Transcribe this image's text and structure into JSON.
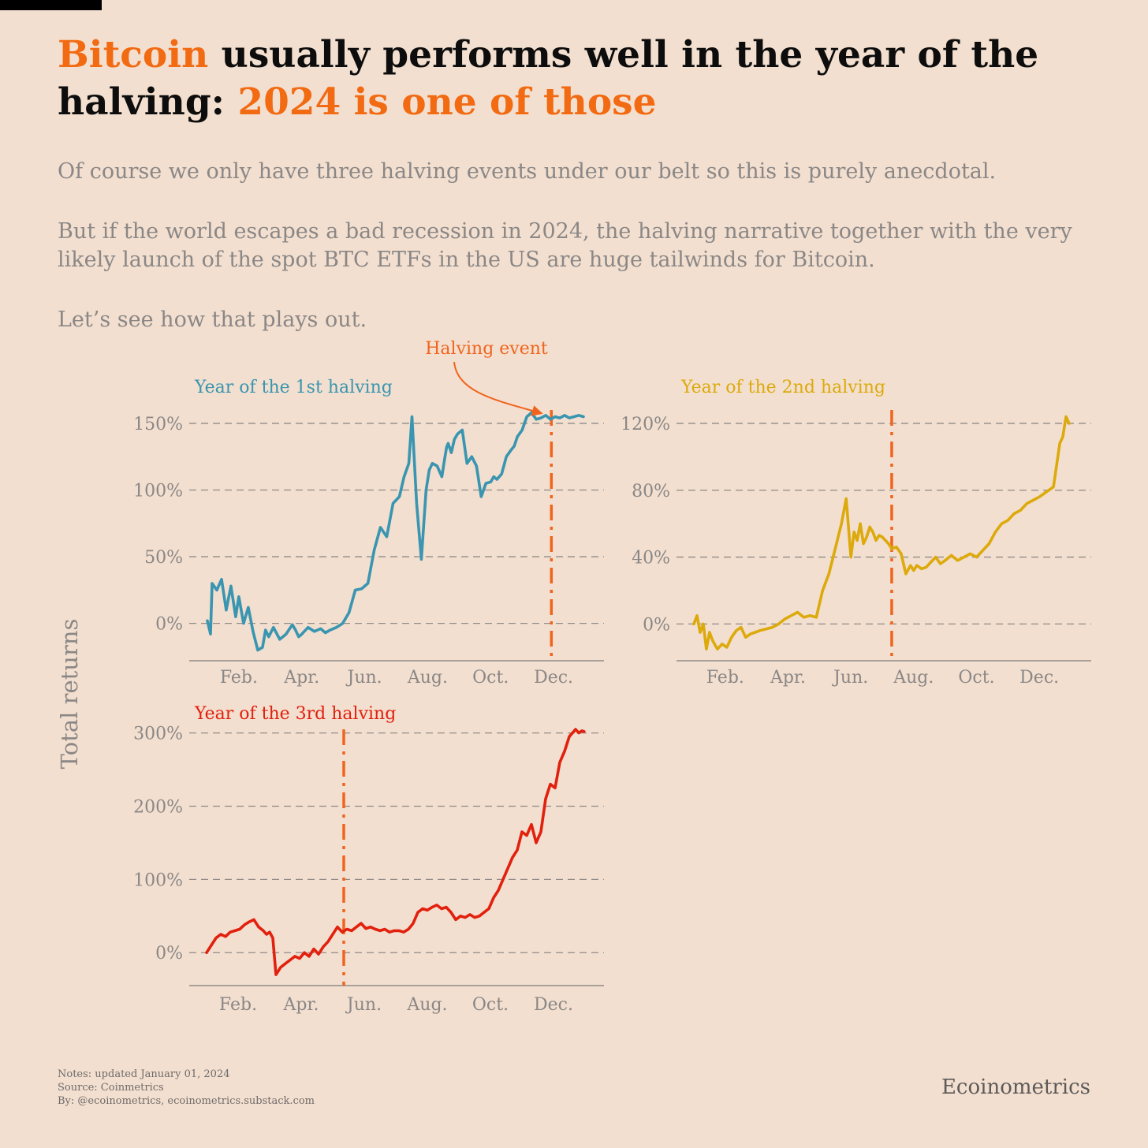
{
  "title": {
    "part1": "Bitcoin",
    "part2": " usually performs well in the year of the halving: ",
    "part3": "2024 is one of those"
  },
  "subtitle": {
    "p1": "Of course we only have three halving events under our belt so this is purely anecdotal.",
    "p2": "But if the world escapes a bad recession in 2024, the halving narrative together with the very likely launch of the spot BTC ETFs in the US are huge tailwinds for Bitcoin.",
    "p3": "Let’s see how that plays out."
  },
  "annotation": "Halving event",
  "notes": {
    "line1": "Notes: updated January 01, 2024",
    "line2": "Source: Coinmetrics",
    "line3": "By: @ecoinometrics, ecoinometrics.substack.com"
  },
  "brand": "Ecoinometrics",
  "colors": {
    "background": "#f3dfcf",
    "accent": "#f26a12",
    "halving_line": "#f0641e",
    "panel1": "#3a95b0",
    "panel2": "#dcaa0c",
    "panel3": "#e2200e",
    "text_muted": "#8a8786"
  },
  "chart_data": {
    "type": "line",
    "ylabel": "Total returns",
    "x_tick_labels": [
      "Feb.",
      "Apr.",
      "Jun.",
      "Aug.",
      "Oct.",
      "Dec."
    ],
    "x_tick_months": [
      2,
      4,
      6,
      8,
      10,
      12
    ],
    "panels": [
      {
        "title": "Year of the 1st halving",
        "color": "#3a95b0",
        "ylim": [
          -28,
          160
        ],
        "yticks": [
          0,
          50,
          100,
          150
        ],
        "ytick_labels": [
          "0%",
          "50%",
          "100%",
          "150%"
        ],
        "halving_month": 11.93,
        "x": [
          1.0,
          1.1,
          1.15,
          1.3,
          1.45,
          1.6,
          1.75,
          1.9,
          2.0,
          2.15,
          2.3,
          2.45,
          2.6,
          2.75,
          2.85,
          2.95,
          3.1,
          3.3,
          3.5,
          3.7,
          3.8,
          3.9,
          4.0,
          4.2,
          4.4,
          4.6,
          4.75,
          4.9,
          5.1,
          5.3,
          5.5,
          5.7,
          5.9,
          6.1,
          6.3,
          6.5,
          6.7,
          6.9,
          7.1,
          7.25,
          7.4,
          7.5,
          7.65,
          7.8,
          7.95,
          8.05,
          8.15,
          8.3,
          8.45,
          8.55,
          8.6,
          8.65,
          8.75,
          8.85,
          8.95,
          9.1,
          9.25,
          9.4,
          9.55,
          9.7,
          9.85,
          10.0,
          10.1,
          10.2,
          10.35,
          10.5,
          10.65,
          10.75,
          10.85,
          11.0,
          11.15,
          11.3,
          11.45,
          11.6,
          11.75,
          11.9,
          12.05,
          12.2,
          12.35,
          12.5,
          12.65,
          12.8,
          12.95
        ],
        "y": [
          2,
          -8,
          30,
          25,
          33,
          10,
          28,
          5,
          20,
          0,
          12,
          -6,
          -20,
          -18,
          -5,
          -10,
          -3,
          -12,
          -8,
          -1,
          -5,
          -10,
          -8,
          -3,
          -6,
          -4,
          -7,
          -5,
          -3,
          0,
          8,
          25,
          26,
          30,
          55,
          72,
          65,
          90,
          95,
          110,
          120,
          155,
          90,
          48,
          100,
          115,
          120,
          118,
          110,
          125,
          132,
          135,
          128,
          138,
          142,
          145,
          120,
          125,
          118,
          95,
          105,
          106,
          110,
          108,
          112,
          125,
          130,
          133,
          140,
          145,
          155,
          158,
          153,
          154,
          156,
          153,
          155,
          154,
          156,
          154,
          155,
          156,
          155
        ]
      },
      {
        "title": "Year of the 2nd halving",
        "color": "#dcaa0c",
        "ylim": [
          -22,
          128
        ],
        "yticks": [
          0,
          40,
          80,
          120
        ],
        "ytick_labels": [
          "0%",
          "40%",
          "80%",
          "120%"
        ],
        "halving_month": 7.3,
        "x": [
          1.0,
          1.1,
          1.2,
          1.3,
          1.4,
          1.5,
          1.6,
          1.75,
          1.9,
          2.05,
          2.2,
          2.35,
          2.5,
          2.65,
          2.8,
          2.95,
          3.1,
          3.3,
          3.5,
          3.7,
          3.9,
          4.1,
          4.3,
          4.5,
          4.7,
          4.9,
          5.1,
          5.3,
          5.5,
          5.7,
          5.85,
          6.0,
          6.1,
          6.2,
          6.3,
          6.4,
          6.5,
          6.6,
          6.7,
          6.8,
          6.9,
          7.0,
          7.1,
          7.2,
          7.3,
          7.45,
          7.6,
          7.75,
          7.9,
          8.0,
          8.1,
          8.25,
          8.4,
          8.55,
          8.7,
          8.85,
          9.0,
          9.2,
          9.4,
          9.6,
          9.8,
          10.0,
          10.2,
          10.4,
          10.6,
          10.8,
          11.0,
          11.2,
          11.4,
          11.6,
          11.8,
          12.0,
          12.15,
          12.3,
          12.45,
          12.55,
          12.65,
          12.75,
          12.85,
          12.95
        ],
        "y": [
          0,
          5,
          -5,
          0,
          -15,
          -5,
          -10,
          -15,
          -12,
          -14,
          -8,
          -4,
          -2,
          -8,
          -6,
          -5,
          -4,
          -3,
          -2,
          0,
          3,
          5,
          7,
          4,
          5,
          4,
          20,
          30,
          45,
          60,
          75,
          40,
          55,
          50,
          60,
          48,
          52,
          58,
          55,
          50,
          53,
          52,
          50,
          48,
          45,
          46,
          42,
          30,
          35,
          32,
          35,
          33,
          34,
          37,
          40,
          36,
          38,
          41,
          38,
          40,
          42,
          40,
          44,
          48,
          55,
          60,
          62,
          66,
          68,
          72,
          74,
          76,
          78,
          80,
          82,
          95,
          108,
          112,
          124,
          120
        ]
      },
      {
        "title": "Year of the 3rd halving",
        "color": "#e2200e",
        "ylim": [
          -45,
          305
        ],
        "yticks": [
          0,
          100,
          200,
          300
        ],
        "ytick_labels": [
          "0%",
          "100%",
          "200%",
          "300%"
        ],
        "halving_month": 5.35,
        "x": [
          1.0,
          1.15,
          1.3,
          1.45,
          1.6,
          1.75,
          1.9,
          2.05,
          2.2,
          2.35,
          2.5,
          2.65,
          2.8,
          2.9,
          3.0,
          3.1,
          3.2,
          3.35,
          3.5,
          3.65,
          3.8,
          3.95,
          4.1,
          4.25,
          4.4,
          4.55,
          4.7,
          4.85,
          5.0,
          5.15,
          5.3,
          5.45,
          5.6,
          5.75,
          5.9,
          6.05,
          6.2,
          6.35,
          6.5,
          6.65,
          6.8,
          6.95,
          7.1,
          7.25,
          7.4,
          7.55,
          7.7,
          7.85,
          8.0,
          8.15,
          8.3,
          8.45,
          8.6,
          8.75,
          8.9,
          9.05,
          9.2,
          9.35,
          9.5,
          9.65,
          9.8,
          9.95,
          10.1,
          10.25,
          10.4,
          10.55,
          10.7,
          10.85,
          11.0,
          11.15,
          11.3,
          11.45,
          11.6,
          11.75,
          11.9,
          12.05,
          12.2,
          12.35,
          12.5,
          12.6,
          12.7,
          12.8,
          12.9,
          12.97
        ],
        "y": [
          0,
          10,
          20,
          25,
          22,
          28,
          30,
          32,
          38,
          42,
          45,
          35,
          30,
          25,
          28,
          20,
          -30,
          -20,
          -15,
          -10,
          -5,
          -8,
          0,
          -5,
          5,
          -2,
          8,
          15,
          25,
          35,
          28,
          32,
          30,
          35,
          40,
          33,
          35,
          32,
          30,
          32,
          28,
          30,
          30,
          28,
          32,
          40,
          55,
          60,
          58,
          62,
          65,
          60,
          62,
          55,
          45,
          50,
          48,
          52,
          48,
          50,
          55,
          60,
          75,
          85,
          100,
          115,
          130,
          140,
          165,
          160,
          175,
          150,
          165,
          210,
          230,
          225,
          260,
          275,
          295,
          300,
          305,
          300,
          303,
          302
        ]
      }
    ]
  }
}
